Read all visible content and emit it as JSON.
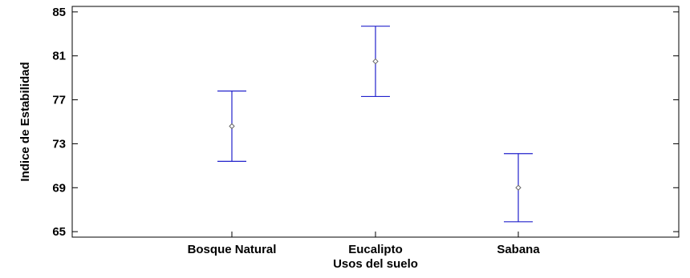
{
  "chart_data": {
    "type": "error-bar",
    "title": "",
    "xlabel": "Usos del suelo",
    "ylabel": "Indice de Estabilidad",
    "ylim": [
      64.5,
      85.5
    ],
    "yticks": [
      65,
      69,
      73,
      77,
      81,
      85
    ],
    "grid": false,
    "categories": [
      "Bosque Natural",
      "Eucalipto",
      "Sabana"
    ],
    "means": [
      74.6,
      80.5,
      69.0
    ],
    "lower": [
      71.4,
      77.3,
      65.9
    ],
    "upper": [
      77.8,
      83.7,
      72.1
    ],
    "colors": {
      "bar": "#2222cc",
      "marker": "#666666",
      "axis": "#000000"
    }
  }
}
